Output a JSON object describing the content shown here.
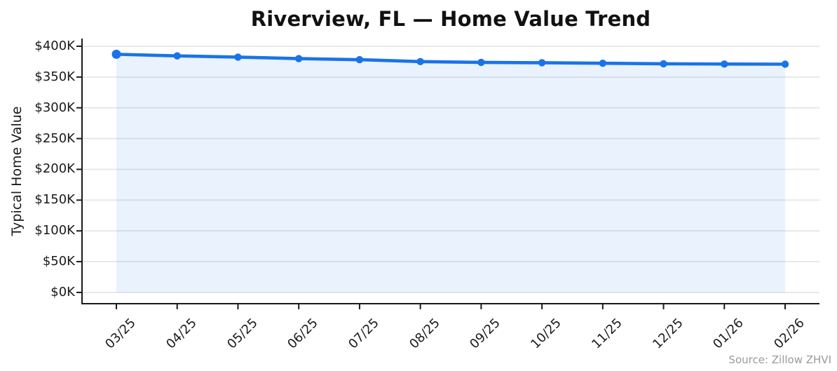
{
  "figure": {
    "title": "Riverview, FL — Home Value Trend",
    "source_note": "Source: Zillow ZHVI"
  },
  "chart_data": {
    "type": "line",
    "title": "Riverview, FL — Home Value Trend",
    "xlabel": "",
    "ylabel": "Typical Home Value",
    "x": [
      "03/25",
      "04/25",
      "05/25",
      "06/25",
      "07/25",
      "08/25",
      "09/25",
      "10/25",
      "11/25",
      "12/25",
      "01/26",
      "02/26"
    ],
    "series": [
      {
        "name": "Typical Home Value",
        "values": [
          387000,
          384400,
          382400,
          379900,
          378200,
          375100,
          373800,
          373200,
          372400,
          371500,
          371100,
          370900
        ]
      }
    ],
    "y_ticks": {
      "values": [
        0,
        50000,
        100000,
        150000,
        200000,
        250000,
        300000,
        350000,
        400000
      ],
      "labels": [
        "$0K",
        "$50K",
        "$100K",
        "$150K",
        "$200K",
        "$250K",
        "$300K",
        "$350K",
        "$400K"
      ]
    },
    "ylim": [
      -18300,
      412500
    ],
    "grid": "horizontal-only",
    "legend": "none",
    "xtick_rotation": 45,
    "area_fill_to_zero": true,
    "marker": "circle",
    "annotations": [
      "Source: Zillow ZHVI"
    ],
    "style": {
      "line_color": "#1a73e8",
      "fill_color": "rgba(26,115,232,0.09)",
      "grid_color": "#e7e7e7",
      "axis_color": "#1a1a1a",
      "text_color": "#1a1a1a",
      "source_color": "#9a9a9a"
    }
  }
}
